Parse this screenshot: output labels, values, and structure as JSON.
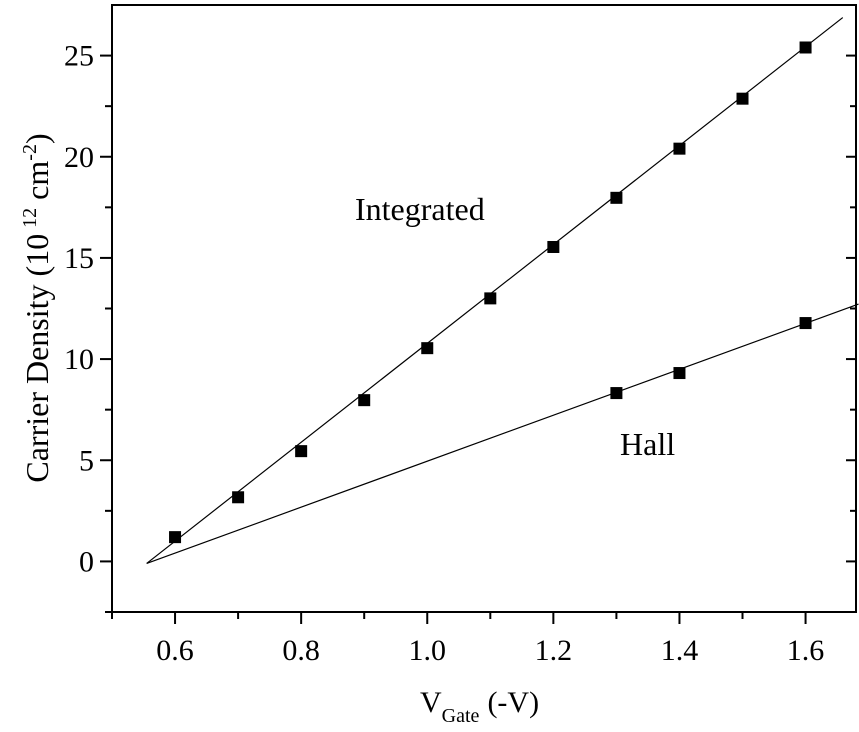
{
  "chart_data": {
    "type": "scatter",
    "x_label": {
      "main": "V",
      "sub": "Gate",
      "rest": "(-V)"
    },
    "y_label": {
      "main": "Carrier Density (10",
      "exp": "12",
      "unit": "cm",
      "unit_exp": "-2",
      "close": ")"
    },
    "annotations": [
      "Integrated",
      "Hall"
    ],
    "xlim": [
      0.5,
      1.68
    ],
    "ylim": [
      -2.5,
      27.5
    ],
    "xticks": [
      0.6,
      0.8,
      {
        "value": 1,
        "label": "1.0"
      },
      1.2,
      1.4,
      1.6
    ],
    "yticks": [
      0,
      5,
      10,
      15,
      20,
      25
    ],
    "xminor": [
      0.5,
      0.7,
      0.9,
      1.1,
      1.3,
      1.5
    ],
    "yminor": [
      -2.5,
      2.5,
      7.5,
      12.5,
      17.5,
      22.5
    ],
    "color": "#000000",
    "series": [
      {
        "x": [
          0.6,
          0.7,
          0.8,
          0.9,
          1.0,
          1.1,
          1.2,
          1.3,
          1.4,
          1.5,
          1.6
        ],
        "values": [
          1.2,
          3.17,
          5.45,
          7.97,
          10.54,
          13.0,
          15.54,
          17.97,
          20.4,
          22.87,
          25.4
        ]
      },
      {
        "x": [
          1.3,
          1.4,
          1.6
        ],
        "values": [
          8.32,
          9.31,
          11.78
        ]
      }
    ],
    "fits": [
      {
        "x": [
          0.555,
          1.659
        ],
        "values": [
          -0.1,
          26.88
        ]
      },
      {
        "x": [
          0.555,
          1.684
        ],
        "values": [
          -0.1,
          12.72
        ]
      }
    ]
  }
}
